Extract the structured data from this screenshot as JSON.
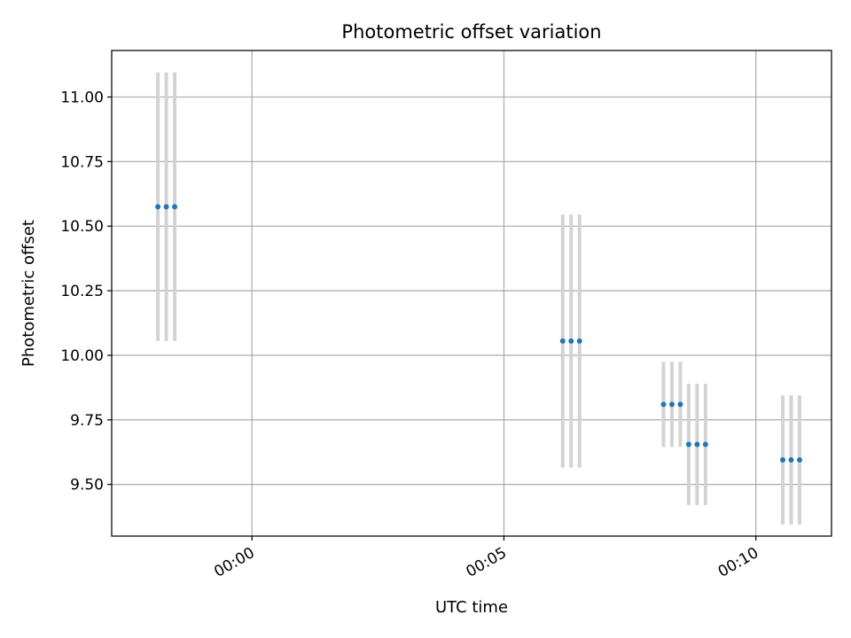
{
  "chart_data": {
    "type": "scatter",
    "title": "Photometric offset variation",
    "xlabel": "UTC time",
    "ylabel": "Photometric offset",
    "x_axis_kind": "time",
    "xlim": [
      "23:57:13",
      "00:11:30"
    ],
    "ylim": [
      9.3,
      11.18
    ],
    "grid": true,
    "x_ticks": [
      {
        "value": "00:00",
        "label": "00:00"
      },
      {
        "value": "00:05",
        "label": "00:05"
      },
      {
        "value": "00:10",
        "label": "00:10"
      }
    ],
    "y_ticks": [
      9.5,
      9.75,
      10.0,
      10.25,
      10.5,
      10.75,
      11.0
    ],
    "y_tick_labels": [
      "9.50",
      "9.75",
      "10.00",
      "10.25",
      "10.50",
      "10.75",
      "11.00"
    ],
    "marker_color": "#1f77b4",
    "errorbar_color": "#d3d3d3",
    "grid_color": "#b0b0b0",
    "points": [
      {
        "x": "23:58:08",
        "y": 10.575,
        "yerr": 0.52
      },
      {
        "x": "23:58:18",
        "y": 10.575,
        "yerr": 0.52
      },
      {
        "x": "23:58:28",
        "y": 10.575,
        "yerr": 0.52
      },
      {
        "x": "00:06:10",
        "y": 10.055,
        "yerr": 0.49
      },
      {
        "x": "00:06:20",
        "y": 10.055,
        "yerr": 0.49
      },
      {
        "x": "00:06:30",
        "y": 10.055,
        "yerr": 0.49
      },
      {
        "x": "00:08:10",
        "y": 9.81,
        "yerr": 0.165
      },
      {
        "x": "00:08:20",
        "y": 9.81,
        "yerr": 0.165
      },
      {
        "x": "00:08:30",
        "y": 9.81,
        "yerr": 0.165
      },
      {
        "x": "00:08:40",
        "y": 9.655,
        "yerr": 0.235
      },
      {
        "x": "00:08:50",
        "y": 9.655,
        "yerr": 0.235
      },
      {
        "x": "00:09:00",
        "y": 9.655,
        "yerr": 0.235
      },
      {
        "x": "00:10:32",
        "y": 9.595,
        "yerr": 0.25
      },
      {
        "x": "00:10:42",
        "y": 9.595,
        "yerr": 0.25
      },
      {
        "x": "00:10:52",
        "y": 9.595,
        "yerr": 0.25
      }
    ]
  }
}
